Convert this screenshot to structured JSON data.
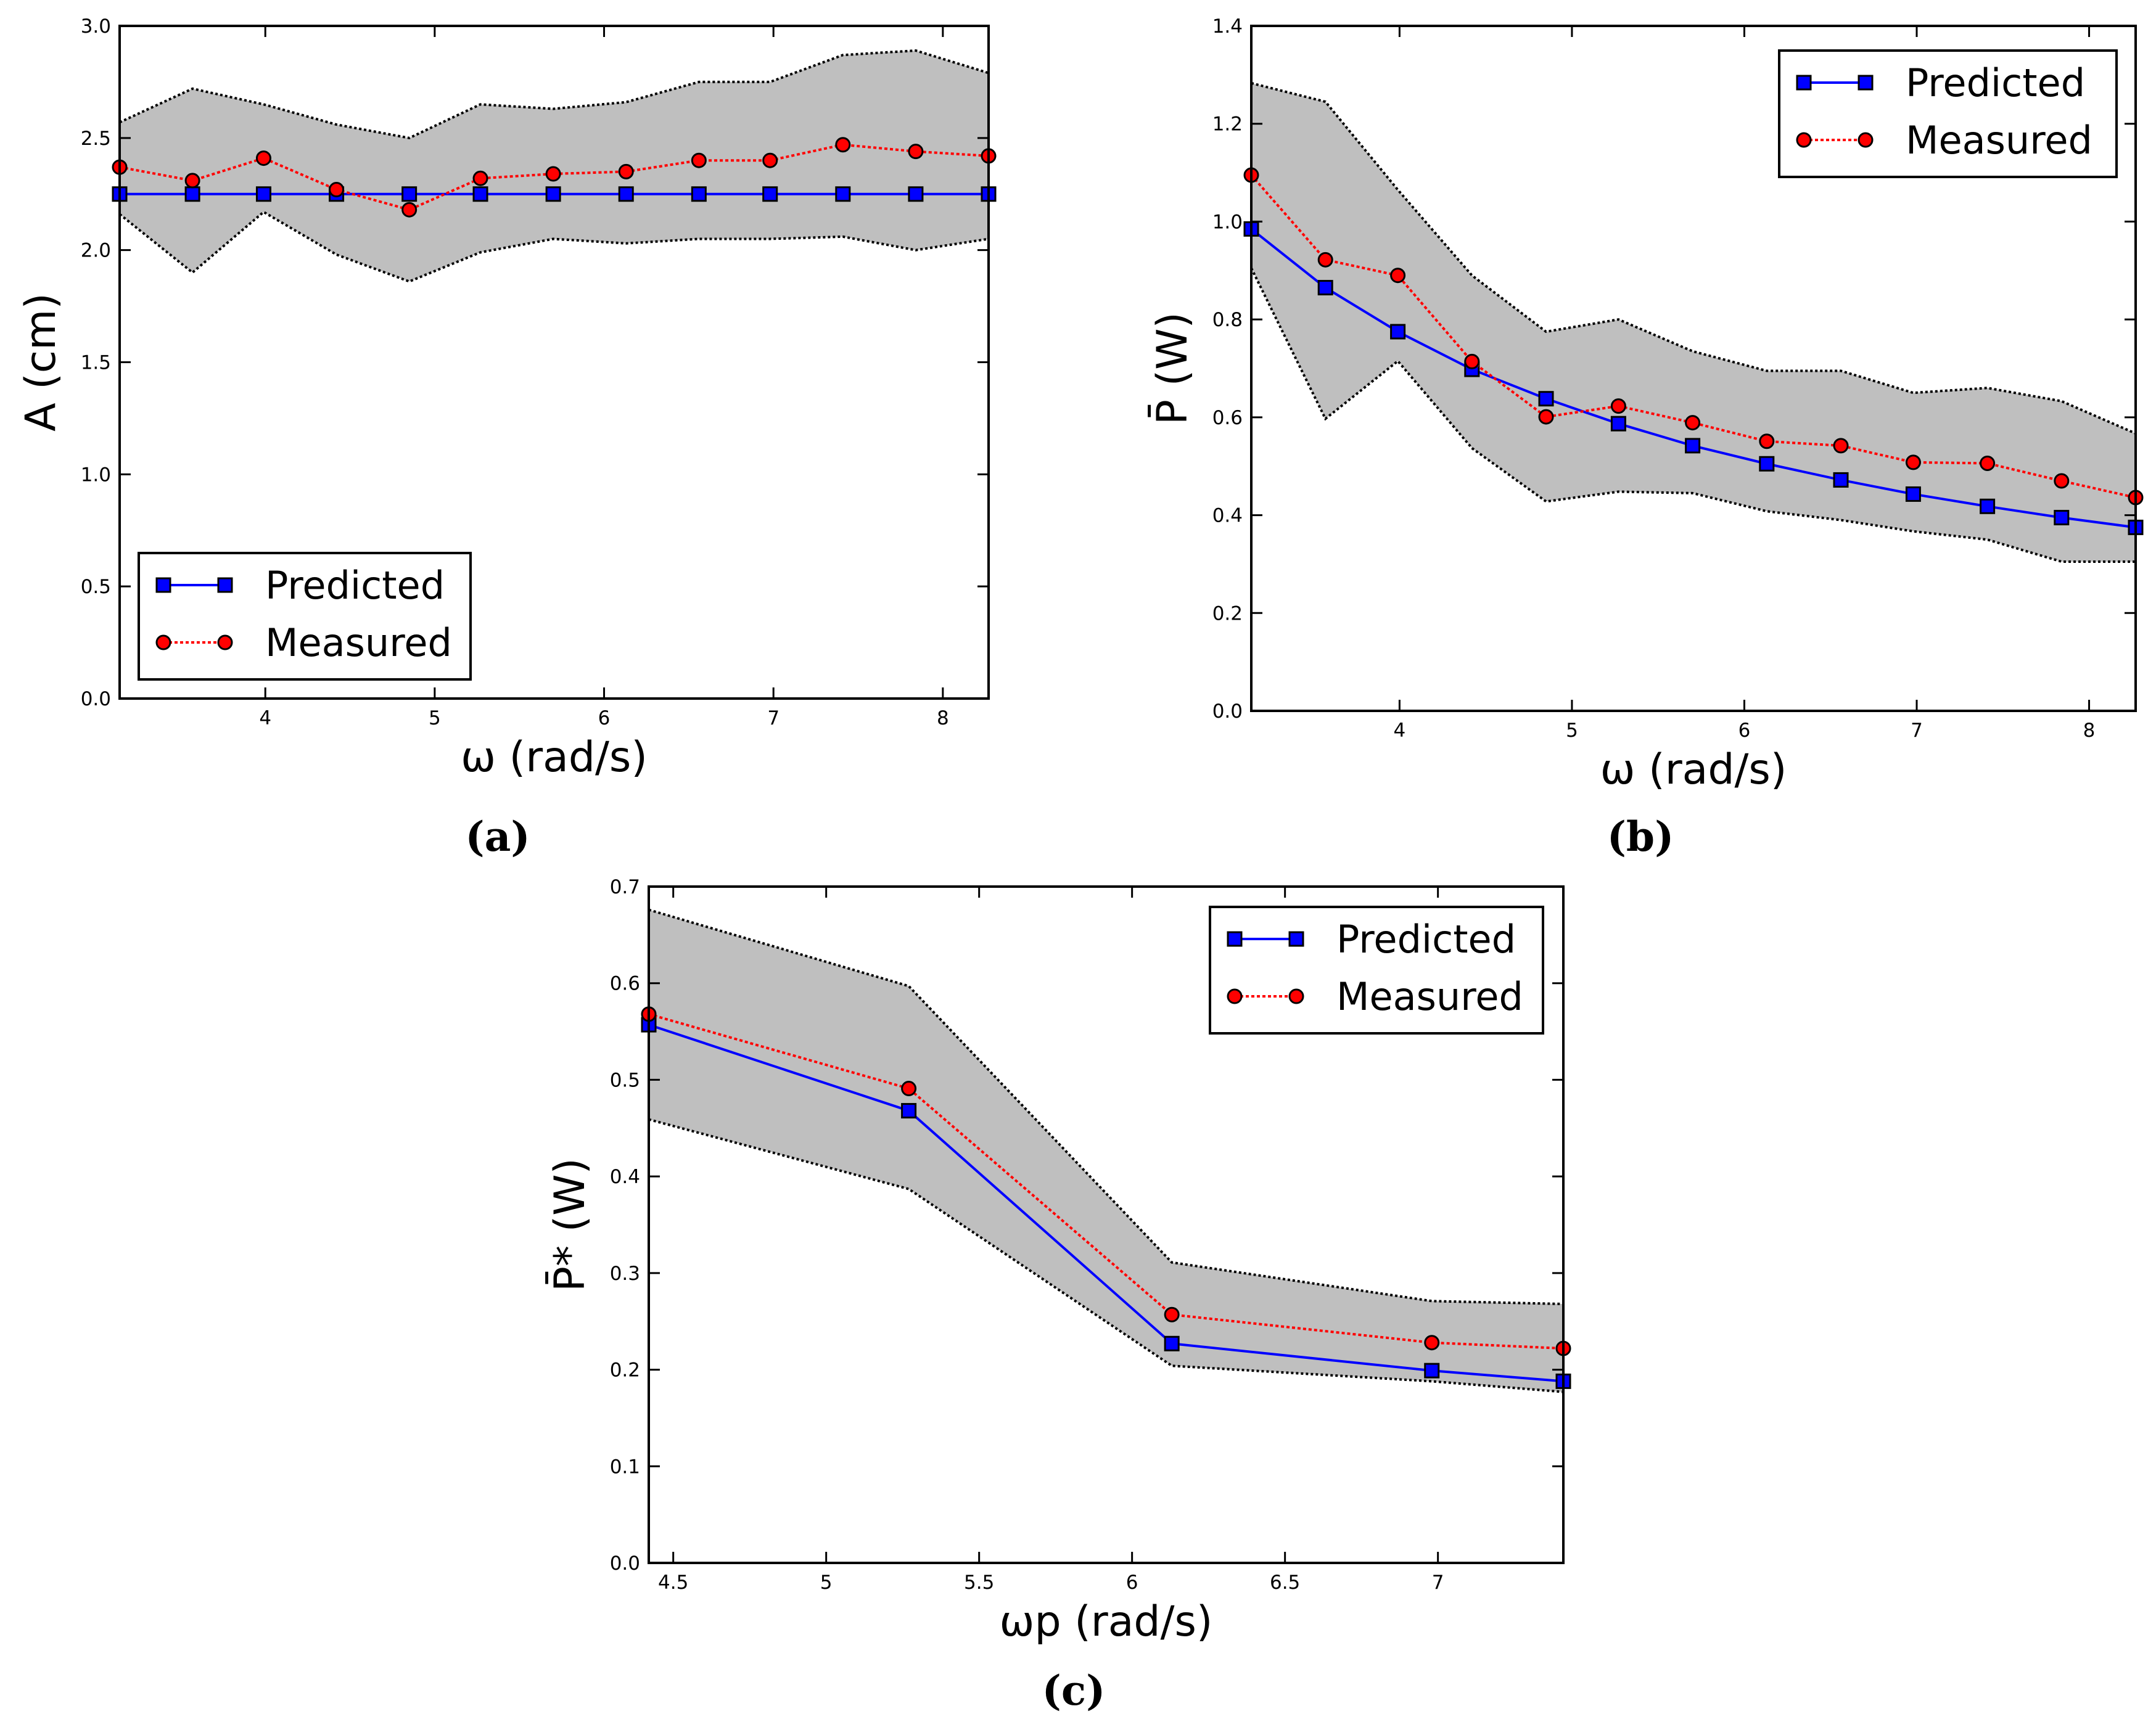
{
  "chart_data": [
    {
      "type": "line",
      "panel_label": "(a)",
      "xlabel": "ω (rad/s)",
      "ylabel": "A (cm)",
      "xlim": [
        3.14,
        8.27
      ],
      "ylim": [
        0.0,
        3.0
      ],
      "xticks": [
        4,
        5,
        6,
        7,
        8
      ],
      "yticks": [
        0.0,
        0.5,
        1.0,
        1.5,
        2.0,
        2.5,
        3.0
      ],
      "ytick_decimals": 1,
      "legend": "lower-left",
      "x": [
        3.14,
        3.57,
        3.99,
        4.42,
        4.85,
        5.27,
        5.7,
        6.13,
        6.56,
        6.98,
        7.41,
        7.84,
        8.27
      ],
      "band_upper": [
        2.57,
        2.72,
        2.65,
        2.56,
        2.5,
        2.65,
        2.63,
        2.66,
        2.75,
        2.75,
        2.87,
        2.89,
        2.79
      ],
      "band_lower": [
        2.16,
        1.9,
        2.17,
        1.98,
        1.86,
        1.99,
        2.05,
        2.03,
        2.05,
        2.05,
        2.06,
        2.0,
        2.05
      ],
      "series": [
        {
          "name": "Predicted",
          "color": "#0000ff",
          "marker": "square",
          "values": [
            2.25,
            2.25,
            2.25,
            2.25,
            2.25,
            2.25,
            2.25,
            2.25,
            2.25,
            2.25,
            2.25,
            2.25,
            2.25
          ]
        },
        {
          "name": "Measured",
          "color": "#ff0000",
          "marker": "circle",
          "values": [
            2.37,
            2.31,
            2.41,
            2.27,
            2.18,
            2.32,
            2.34,
            2.35,
            2.4,
            2.4,
            2.47,
            2.44,
            2.42
          ]
        }
      ]
    },
    {
      "type": "line",
      "panel_label": "(b)",
      "xlabel": "ω (rad/s)",
      "ylabel": "P̄ (W)",
      "xlim": [
        3.14,
        8.27
      ],
      "ylim": [
        0.0,
        1.4
      ],
      "xticks": [
        4,
        5,
        6,
        7,
        8
      ],
      "yticks": [
        0.0,
        0.2,
        0.4,
        0.6,
        0.8,
        1.0,
        1.2,
        1.4
      ],
      "ytick_decimals": 1,
      "legend": "upper-right",
      "x": [
        3.14,
        3.57,
        3.99,
        4.42,
        4.85,
        5.27,
        5.7,
        6.13,
        6.56,
        6.98,
        7.41,
        7.84,
        8.27
      ],
      "band_upper": [
        1.283,
        1.245,
        1.065,
        0.89,
        0.775,
        0.8,
        0.735,
        0.695,
        0.695,
        0.65,
        0.66,
        0.633,
        0.567
      ],
      "band_lower": [
        0.905,
        0.597,
        0.715,
        0.537,
        0.428,
        0.448,
        0.445,
        0.408,
        0.39,
        0.367,
        0.35,
        0.305,
        0.305
      ],
      "series": [
        {
          "name": "Predicted",
          "color": "#0000ff",
          "marker": "square",
          "values": [
            0.985,
            0.865,
            0.775,
            0.698,
            0.638,
            0.587,
            0.542,
            0.505,
            0.472,
            0.443,
            0.418,
            0.395,
            0.375
          ]
        },
        {
          "name": "Measured",
          "color": "#ff0000",
          "marker": "circle",
          "values": [
            1.095,
            0.922,
            0.89,
            0.714,
            0.601,
            0.623,
            0.589,
            0.551,
            0.542,
            0.508,
            0.506,
            0.47,
            0.436
          ]
        }
      ]
    },
    {
      "type": "line",
      "panel_label": "(c)",
      "xlabel": "ωp (rad/s)",
      "ylabel": "P̄* (W)",
      "xlim": [
        4.42,
        7.41
      ],
      "ylim": [
        0.0,
        0.7
      ],
      "xticks": [
        4.5,
        5.0,
        5.5,
        6.0,
        6.5,
        7.0
      ],
      "yticks": [
        0.0,
        0.1,
        0.2,
        0.3,
        0.4,
        0.5,
        0.6,
        0.7
      ],
      "ytick_decimals": 1,
      "legend": "upper-right",
      "x": [
        4.42,
        5.27,
        6.13,
        6.98,
        7.41
      ],
      "band_upper": [
        0.676,
        0.597,
        0.311,
        0.271,
        0.268
      ],
      "band_lower": [
        0.459,
        0.387,
        0.204,
        0.188,
        0.177
      ],
      "series": [
        {
          "name": "Predicted",
          "color": "#0000ff",
          "marker": "square",
          "values": [
            0.557,
            0.468,
            0.227,
            0.199,
            0.188
          ]
        },
        {
          "name": "Measured",
          "color": "#ff0000",
          "marker": "circle",
          "values": [
            0.568,
            0.491,
            0.257,
            0.228,
            0.222
          ]
        }
      ]
    }
  ]
}
